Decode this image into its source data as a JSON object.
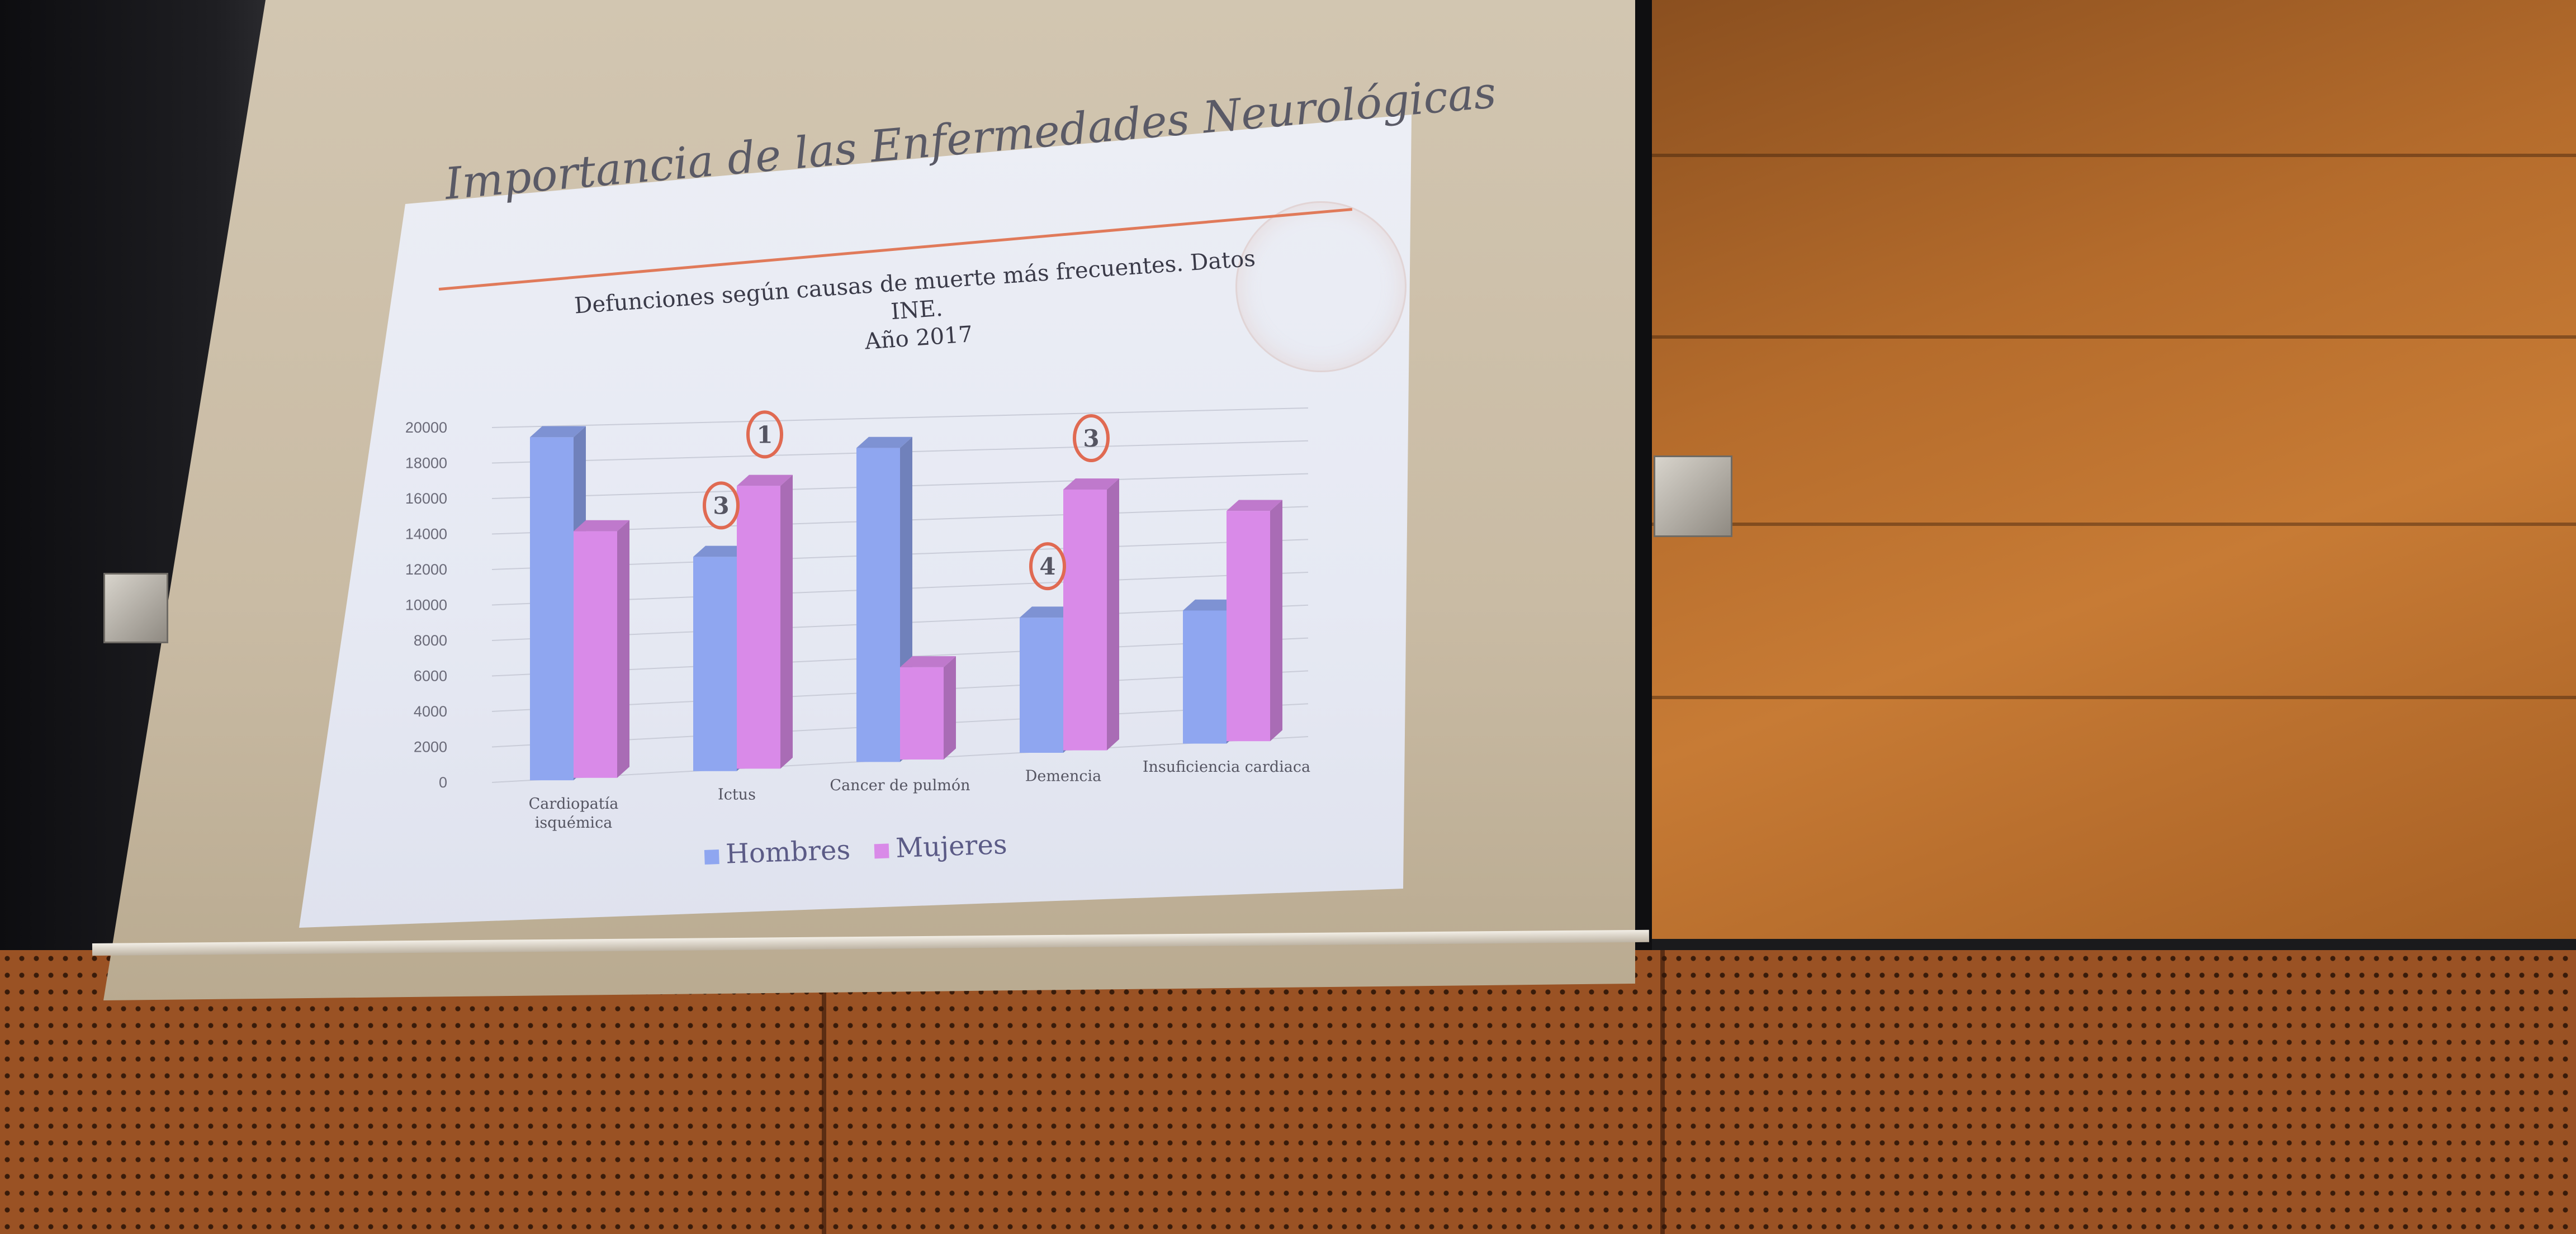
{
  "slide": {
    "title": "Importancia de las Enfermedades Neurológicas",
    "chart_title_line1": "Defunciones según causas de muerte más frecuentes. Datos INE.",
    "chart_title_line2": "Año 2017"
  },
  "chart_data": {
    "type": "bar",
    "title": "Defunciones según causas de muerte más frecuentes. Datos INE. Año 2017",
    "categories": [
      "Cardiopatía isquémica",
      "Ictus",
      "Cancer de pulmón",
      "Demencia",
      "Insuficiencia cardiaca"
    ],
    "category_lines": [
      [
        "Cardiopatía",
        "isquémica"
      ],
      [
        "Ictus"
      ],
      [
        "Cancer de pulmón"
      ],
      [
        "Demencia"
      ],
      [
        "Insuficiencia cardiaca"
      ]
    ],
    "series": [
      {
        "name": "Hombres",
        "color": "#8fa6f0",
        "values": [
          19400,
          12300,
          18300,
          8000,
          8000
        ]
      },
      {
        "name": "Mujeres",
        "color": "#d98ae8",
        "values": [
          14000,
          16300,
          5400,
          15500,
          13900
        ]
      }
    ],
    "y_ticks": [
      "20000",
      "18000",
      "16000",
      "14000",
      "12000",
      "10000",
      "8000",
      "6000",
      "4000",
      "2000",
      "0"
    ],
    "ylim": [
      0,
      20000
    ],
    "legend": [
      "Hombres",
      "Mujeres"
    ],
    "legend_position": "bottom",
    "annotations": [
      {
        "label": "3",
        "category": "Ictus",
        "series": "Hombres"
      },
      {
        "label": "1",
        "category": "Ictus",
        "series": "Mujeres"
      },
      {
        "label": "4",
        "category": "Demencia",
        "series": "Hombres"
      },
      {
        "label": "3",
        "category": "Demencia",
        "series": "Mujeres"
      }
    ]
  }
}
